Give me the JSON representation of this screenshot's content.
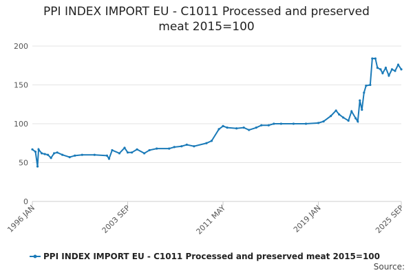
{
  "chart_data": {
    "type": "line",
    "title": "PPI INDEX IMPORT EU - C1011 Processed and preserved meat 2015=100",
    "source": "Source:",
    "x": [
      "1996-01",
      "1996-04",
      "1996-06",
      "1996-07",
      "1996-10",
      "1997-01",
      "1997-04",
      "1997-07",
      "1997-10",
      "1998-01",
      "1998-06",
      "1999-01",
      "1999-06",
      "2000-01",
      "2001-01",
      "2002-01",
      "2002-03",
      "2002-06",
      "2003-01",
      "2003-06",
      "2003-09",
      "2004-01",
      "2004-06",
      "2005-01",
      "2005-06",
      "2006-01",
      "2007-01",
      "2007-06",
      "2008-01",
      "2008-06",
      "2009-01",
      "2010-01",
      "2010-06",
      "2011-01",
      "2011-05",
      "2011-09",
      "2012-06",
      "2013-01",
      "2013-06",
      "2014-01",
      "2014-06",
      "2015-01",
      "2015-06",
      "2016-01",
      "2017-01",
      "2018-01",
      "2019-01",
      "2019-06",
      "2020-01",
      "2020-06",
      "2020-09",
      "2021-01",
      "2021-06",
      "2021-09",
      "2022-01",
      "2022-03",
      "2022-05",
      "2022-07",
      "2022-09",
      "2022-11",
      "2023-03",
      "2023-05",
      "2023-08",
      "2023-10",
      "2024-01",
      "2024-03",
      "2024-06",
      "2024-09",
      "2024-12",
      "2025-03",
      "2025-06",
      "2025-09"
    ],
    "series": [
      {
        "name": "PPI INDEX IMPORT EU - C1011 Processed and preserved meat 2015=100",
        "color": "#1a7ab8",
        "values": [
          67,
          64,
          45,
          67,
          62,
          61,
          60,
          56,
          62,
          63,
          60,
          57,
          59,
          60,
          60,
          59,
          55,
          66,
          62,
          69,
          63,
          63,
          67,
          62,
          66,
          68,
          68,
          70,
          71,
          73,
          71,
          75,
          78,
          93,
          97,
          95,
          94,
          95,
          92,
          95,
          98,
          98,
          100,
          100,
          100,
          100,
          101,
          103,
          110,
          117,
          112,
          108,
          104,
          116,
          107,
          103,
          130,
          118,
          140,
          149,
          150,
          184,
          184,
          172,
          170,
          165,
          172,
          162,
          170,
          168,
          176,
          170
        ]
      }
    ],
    "xlim": [
      "1996-01",
      "2025-09"
    ],
    "xticks": [
      {
        "value": "1996-01",
        "label": "1996 JAN"
      },
      {
        "value": "2003-09",
        "label": "2003 SEP"
      },
      {
        "value": "2011-05",
        "label": "2011 MAY"
      },
      {
        "value": "2019-01",
        "label": "2019 JAN"
      },
      {
        "value": "2025-09",
        "label": "2025 SEP"
      }
    ],
    "ylim": [
      0,
      200
    ],
    "yticks": [
      0,
      50,
      100,
      150,
      200
    ],
    "grid": true
  }
}
